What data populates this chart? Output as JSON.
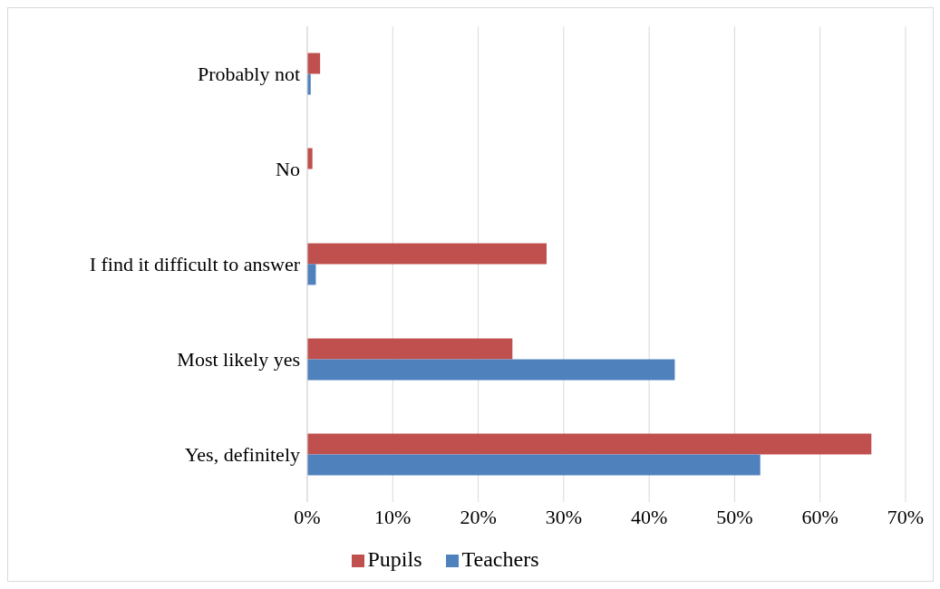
{
  "chart_data": {
    "type": "bar",
    "orientation": "horizontal",
    "categories": [
      "Probably not",
      "No",
      "I find it difficult to answer",
      "Most likely yes",
      "Yes, definitely"
    ],
    "series": [
      {
        "name": "Pupils",
        "color": "#c0504d",
        "values": [
          1.5,
          0.6,
          28,
          24,
          66
        ]
      },
      {
        "name": "Teachers",
        "color": "#4f81bd",
        "values": [
          0.4,
          0,
          1,
          43,
          53
        ]
      }
    ],
    "xlim": [
      0,
      70
    ],
    "xticks": [
      {
        "value": 0,
        "label": "0%"
      },
      {
        "value": 10,
        "label": "10%"
      },
      {
        "value": 20,
        "label": "20%"
      },
      {
        "value": 30,
        "label": "30%"
      },
      {
        "value": 40,
        "label": "40%"
      },
      {
        "value": 50,
        "label": "50%"
      },
      {
        "value": 60,
        "label": "60%"
      },
      {
        "value": 70,
        "label": "70%"
      }
    ],
    "grid": "x",
    "legend": "bottom"
  }
}
